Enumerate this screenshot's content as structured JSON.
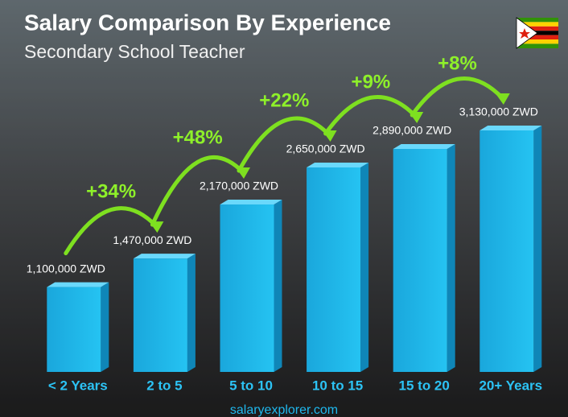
{
  "chart_data": {
    "type": "bar",
    "title": "Salary Comparison By Experience",
    "subtitle": "Secondary School Teacher",
    "categories": [
      "< 2 Years",
      "2 to 5",
      "5 to 10",
      "10 to 15",
      "15 to 20",
      "20+ Years"
    ],
    "values": [
      1100000,
      1470000,
      2170000,
      2650000,
      2890000,
      3130000
    ],
    "value_labels": [
      "1,100,000 ZWD",
      "1,470,000 ZWD",
      "2,170,000 ZWD",
      "2,650,000 ZWD",
      "2,890,000 ZWD",
      "3,130,000 ZWD"
    ],
    "color": "#1eb4e8",
    "annotations": [
      "+34%",
      "+48%",
      "+22%",
      "+9%",
      "+8%"
    ],
    "footer": "salaryexplorer.com"
  }
}
